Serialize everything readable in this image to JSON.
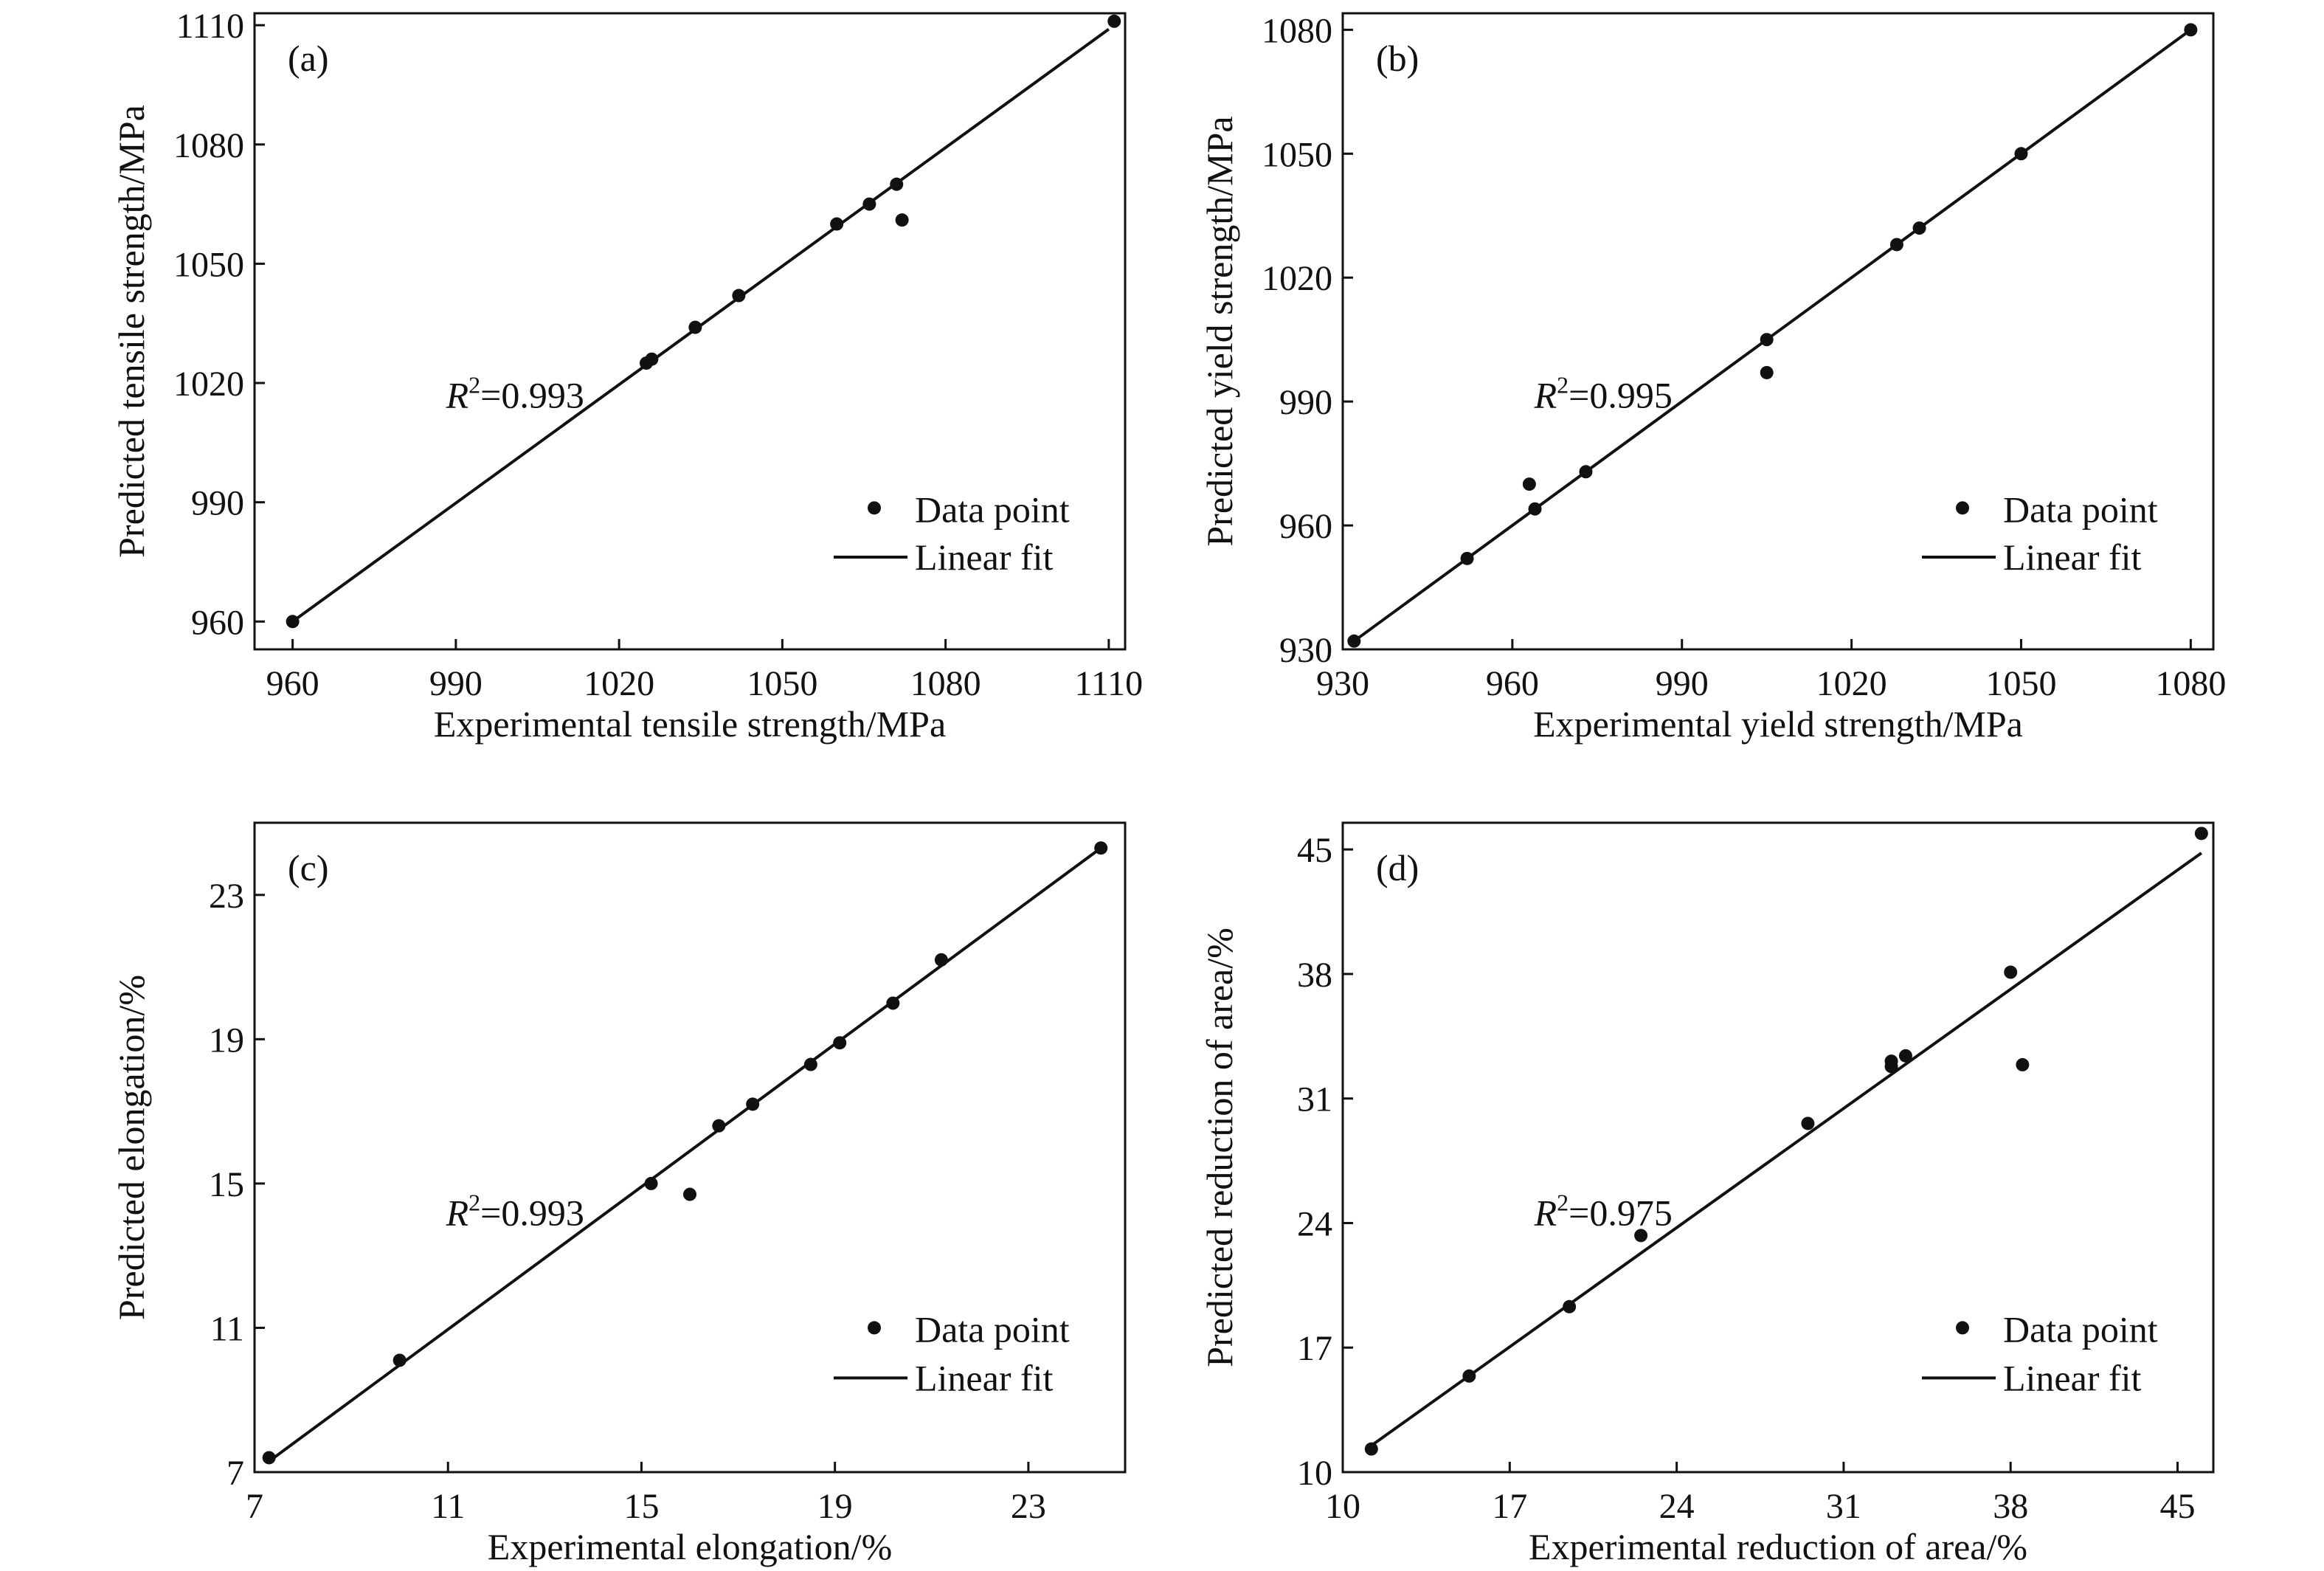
{
  "chart_data": [
    {
      "type": "scatter",
      "panel_label": "(a)",
      "xlabel": "Experimental tensile strength/MPa",
      "ylabel": "Predicted tensile strength/MPa",
      "xlim": [
        953,
        1113
      ],
      "ylim": [
        953,
        1113
      ],
      "xticks": [
        960,
        990,
        1020,
        1050,
        1080,
        1110
      ],
      "yticks": [
        960,
        990,
        1020,
        1050,
        1080,
        1110
      ],
      "r2_symbol": "R",
      "r2_exp": "2",
      "r2_value": "=0.993",
      "legend": {
        "points": "Data point",
        "line": "Linear fit",
        "position": "bottom-right"
      },
      "fit": {
        "x": [
          960,
          1110
        ],
        "y": [
          960,
          1109
        ]
      },
      "points": {
        "x": [
          960,
          1025,
          1026,
          1034,
          1042,
          1060,
          1066,
          1071,
          1072,
          1111
        ],
        "y": [
          960,
          1025,
          1026,
          1034,
          1042,
          1060,
          1065,
          1070,
          1061,
          1111
        ]
      }
    },
    {
      "type": "scatter",
      "panel_label": "(b)",
      "xlabel": "Experimental yield strength/MPa",
      "ylabel": "Predicted yield strength/MPa",
      "xlim": [
        930,
        1084
      ],
      "ylim": [
        930,
        1084
      ],
      "xticks": [
        930,
        960,
        990,
        1020,
        1050,
        1080
      ],
      "yticks": [
        930,
        960,
        990,
        1020,
        1050,
        1080
      ],
      "r2_symbol": "R",
      "r2_exp": "2",
      "r2_value": "=0.995",
      "legend": {
        "points": "Data point",
        "line": "Linear fit",
        "position": "bottom-right"
      },
      "fit": {
        "x": [
          932,
          1080
        ],
        "y": [
          932,
          1080
        ]
      },
      "points": {
        "x": [
          932,
          952,
          963,
          964,
          973,
          1005,
          1005,
          1028,
          1032,
          1050,
          1080
        ],
        "y": [
          932,
          952,
          970,
          964,
          973,
          1005,
          997,
          1028,
          1032,
          1050,
          1080
        ]
      }
    },
    {
      "type": "scatter",
      "panel_label": "(c)",
      "xlabel": "Experimental elongation/%",
      "ylabel": "Predicted elongation/%",
      "xlim": [
        7,
        25
      ],
      "ylim": [
        7,
        25
      ],
      "xticks": [
        7,
        11,
        15,
        19,
        23
      ],
      "yticks": [
        7,
        11,
        15,
        19,
        23
      ],
      "r2_symbol": "R",
      "r2_exp": "2",
      "r2_value": "=0.993",
      "legend": {
        "points": "Data point",
        "line": "Linear fit",
        "position": "bottom-right"
      },
      "fit": {
        "x": [
          7.3,
          24.5
        ],
        "y": [
          7.3,
          24.3
        ]
      },
      "points": {
        "x": [
          7.3,
          10.0,
          15.2,
          16.0,
          16.6,
          17.3,
          18.5,
          19.1,
          20.2,
          21.2,
          24.5
        ],
        "y": [
          7.4,
          10.1,
          15.0,
          14.7,
          16.6,
          17.2,
          18.3,
          18.9,
          20.0,
          21.2,
          24.3
        ]
      }
    },
    {
      "type": "scatter",
      "panel_label": "(d)",
      "xlabel": "Experimental reduction of area/%",
      "ylabel": "Predicted reduction of area/%",
      "xlim": [
        10,
        46.5
      ],
      "ylim": [
        10,
        46.5
      ],
      "xticks": [
        10,
        17,
        24,
        31,
        38,
        45
      ],
      "yticks": [
        10,
        17,
        24,
        31,
        38,
        45
      ],
      "r2_symbol": "R",
      "r2_exp": "2",
      "r2_value": "=0.975",
      "legend": {
        "points": "Data point",
        "line": "Linear fit",
        "position": "bottom-right"
      },
      "fit": {
        "x": [
          11,
          46
        ],
        "y": [
          11.3,
          44.8
        ]
      },
      "points": {
        "x": [
          11.2,
          15.3,
          19.5,
          22.5,
          29.5,
          33.0,
          33.0,
          33.6,
          38.0,
          38.5,
          46.0
        ],
        "y": [
          11.3,
          15.4,
          19.3,
          23.3,
          29.6,
          33.1,
          32.8,
          33.4,
          38.1,
          32.9,
          45.9
        ]
      }
    }
  ]
}
